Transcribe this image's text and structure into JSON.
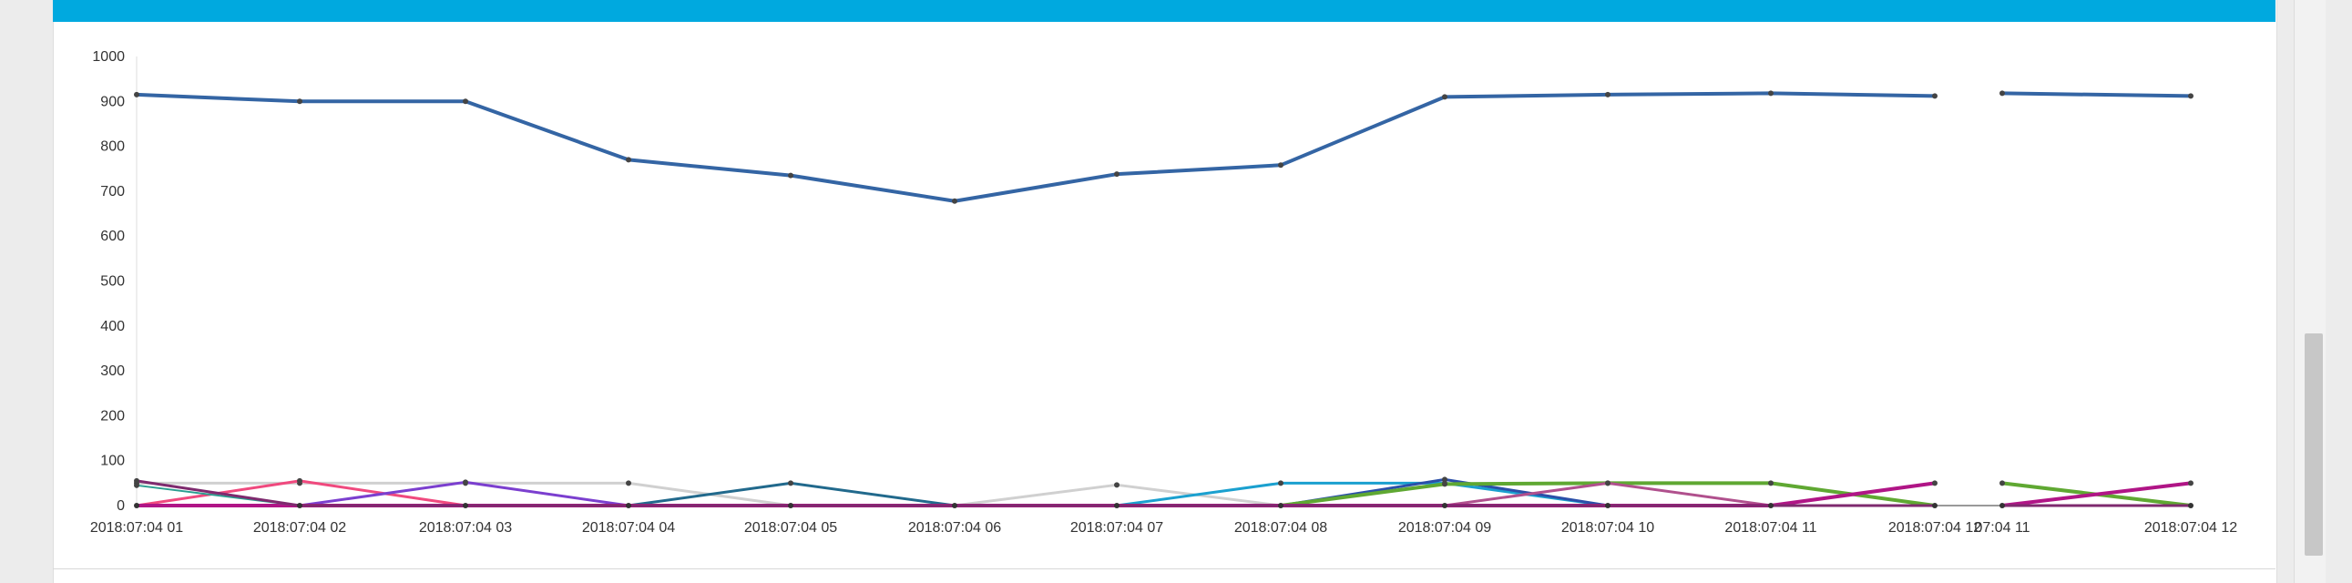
{
  "chart_data": {
    "type": "line",
    "y_ticks": [
      1000,
      900,
      800,
      700,
      600,
      500,
      400,
      300,
      200,
      100,
      0
    ],
    "ylim": [
      0,
      1000
    ],
    "categories": [
      "2018:07:04 01",
      "2018:07:04 02",
      "2018:07:04 03",
      "2018:07:04 04",
      "2018:07:04 05",
      "2018:07:04 06",
      "2018:07:04 07",
      "2018:07:04 08",
      "2018:07:04 09",
      "2018:07:04 10",
      "2018:07:04 11",
      "2018:07:04 12",
      "07:04 11",
      "2018:07:04 12"
    ],
    "segments": [
      [
        0,
        11
      ],
      [
        12,
        13
      ]
    ],
    "grid": false,
    "series": [
      {
        "color": "#3465a4",
        "width": 4,
        "values": [
          915,
          900,
          900,
          770,
          735,
          678,
          738,
          758,
          910,
          915,
          918,
          912,
          918,
          912
        ]
      },
      {
        "color": "#d0d0d0",
        "width": 3,
        "values": [
          50,
          50,
          50,
          50,
          0,
          0,
          46,
          0,
          0,
          0,
          0,
          0,
          0,
          0
        ]
      },
      {
        "color": "#f0497e",
        "width": 3,
        "values": [
          0,
          55,
          0,
          0,
          0,
          0,
          0,
          0,
          0,
          0,
          0,
          0,
          0,
          0
        ]
      },
      {
        "color": "#7b3fcf",
        "width": 3,
        "values": [
          0,
          0,
          52,
          0,
          0,
          0,
          0,
          0,
          0,
          0,
          0,
          0,
          0,
          0
        ]
      },
      {
        "color": "#21698c",
        "width": 3,
        "values": [
          0,
          0,
          0,
          0,
          50,
          0,
          0,
          0,
          0,
          0,
          0,
          0,
          0,
          0
        ]
      },
      {
        "color": "#1aa0cf",
        "width": 3,
        "values": [
          0,
          0,
          0,
          0,
          0,
          0,
          0,
          50,
          50,
          0,
          0,
          0,
          0,
          0
        ]
      },
      {
        "color": "#2b4fa8",
        "width": 3,
        "values": [
          0,
          0,
          0,
          0,
          0,
          0,
          0,
          0,
          58,
          0,
          0,
          0,
          0,
          0
        ]
      },
      {
        "color": "#5fa832",
        "width": 4,
        "values": [
          0,
          0,
          0,
          0,
          0,
          0,
          0,
          0,
          48,
          50,
          50,
          0,
          50,
          0
        ]
      },
      {
        "color": "#b0508d",
        "width": 3,
        "values": [
          0,
          0,
          0,
          0,
          0,
          0,
          0,
          0,
          0,
          50,
          0,
          0,
          0,
          0
        ]
      },
      {
        "color": "#b01586",
        "width": 4,
        "values": [
          0,
          0,
          0,
          0,
          0,
          0,
          0,
          0,
          0,
          0,
          0,
          50,
          0,
          50
        ]
      },
      {
        "color": "#2a9d8f",
        "width": 2,
        "values": [
          45,
          0,
          0,
          0,
          0,
          0,
          0,
          0,
          0,
          0,
          0,
          0,
          0,
          0
        ]
      },
      {
        "color": "#7e2a6e",
        "width": 3,
        "values": [
          55,
          0,
          0,
          0,
          0,
          0,
          0,
          0,
          0,
          0,
          0,
          0,
          0,
          0
        ]
      }
    ]
  }
}
